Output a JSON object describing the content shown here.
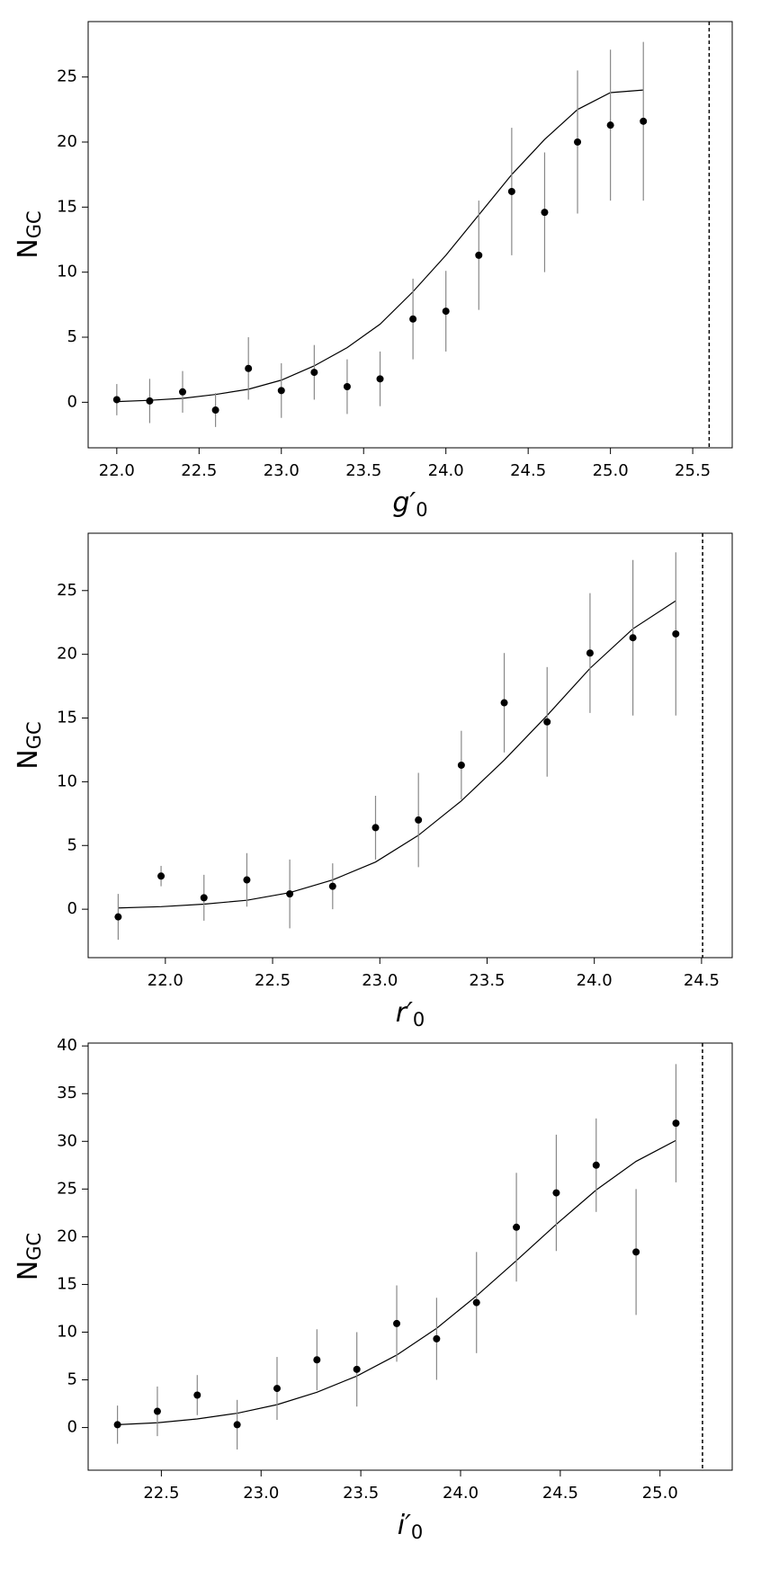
{
  "chart_data": [
    {
      "type": "scatter",
      "x_label_main": "g′",
      "x_label_sub": "0",
      "y_label_main": "N",
      "y_label_sub": "GC",
      "x": [
        22.0,
        22.2,
        22.4,
        22.6,
        22.8,
        23.0,
        23.2,
        23.4,
        23.6,
        23.8,
        24.0,
        24.2,
        24.4,
        24.6,
        24.8,
        25.0,
        25.2
      ],
      "values": [
        0.2,
        0.1,
        0.8,
        -0.6,
        2.6,
        0.9,
        2.3,
        1.2,
        1.8,
        6.4,
        7.0,
        11.3,
        16.2,
        14.6,
        20.0,
        21.3,
        21.6
      ],
      "errors": [
        1.2,
        1.7,
        1.6,
        1.3,
        2.4,
        2.1,
        2.1,
        2.1,
        2.1,
        3.1,
        3.1,
        4.2,
        4.9,
        4.6,
        5.5,
        5.8,
        6.1
      ],
      "model_values": [
        0.05,
        0.15,
        0.3,
        0.6,
        1.0,
        1.7,
        2.8,
        4.2,
        6.0,
        8.5,
        11.3,
        14.4,
        17.5,
        20.2,
        22.5,
        23.8,
        24.0
      ],
      "limit": 25.6,
      "color": "#000000",
      "error_color": "#888888",
      "xlim": [
        21.826,
        25.74
      ],
      "ylim": [
        -3.5,
        29.26
      ],
      "xticks": [
        {
          "value": 22.0,
          "label": "22.0"
        },
        {
          "value": 22.5,
          "label": "22.5"
        },
        {
          "value": 23.0,
          "label": "23.0"
        },
        {
          "value": 23.5,
          "label": "23.5"
        },
        {
          "value": 24.0,
          "label": "24.0"
        },
        {
          "value": 24.5,
          "label": "24.5"
        },
        {
          "value": 25.0,
          "label": "25.0"
        },
        {
          "value": 25.5,
          "label": "25.5"
        }
      ],
      "yticks": [
        0,
        5,
        10,
        15,
        20,
        25
      ]
    },
    {
      "type": "scatter",
      "x_label_main": "r′",
      "x_label_sub": "0",
      "y_label_main": "N",
      "y_label_sub": "GC",
      "x": [
        21.78,
        21.98,
        22.18,
        22.38,
        22.58,
        22.78,
        22.98,
        23.18,
        23.38,
        23.58,
        23.78,
        23.98,
        24.18,
        24.38
      ],
      "values": [
        -0.6,
        2.6,
        0.9,
        2.3,
        1.2,
        1.8,
        6.4,
        7.0,
        11.3,
        16.2,
        14.7,
        20.1,
        21.3,
        21.6
      ],
      "errors": [
        1.8,
        0.8,
        1.8,
        2.1,
        2.7,
        1.8,
        2.5,
        3.7,
        2.7,
        3.9,
        4.3,
        4.7,
        6.1,
        6.4
      ],
      "model_values": [
        0.1,
        0.2,
        0.4,
        0.7,
        1.3,
        2.3,
        3.7,
        5.8,
        8.5,
        11.7,
        15.2,
        18.9,
        22.0,
        24.2
      ],
      "limit": 24.505,
      "color": "#000000",
      "error_color": "#888888",
      "xlim": [
        21.64,
        24.643
      ],
      "ylim": [
        -3.8,
        29.5
      ],
      "xticks": [
        {
          "value": 22.0,
          "label": "22.0"
        },
        {
          "value": 22.5,
          "label": "22.5"
        },
        {
          "value": 23.0,
          "label": "23.0"
        },
        {
          "value": 23.5,
          "label": "23.5"
        },
        {
          "value": 24.0,
          "label": "24.0"
        },
        {
          "value": 24.5,
          "label": "24.5"
        }
      ],
      "yticks": [
        0,
        5,
        10,
        15,
        20,
        25
      ]
    },
    {
      "type": "scatter",
      "x_label_main": "i′",
      "x_label_sub": "0",
      "y_label_main": "N",
      "y_label_sub": "GC",
      "x": [
        22.28,
        22.48,
        22.68,
        22.88,
        23.08,
        23.28,
        23.48,
        23.68,
        23.88,
        24.08,
        24.28,
        24.48,
        24.68,
        24.88,
        25.08
      ],
      "values": [
        0.3,
        1.7,
        3.4,
        0.3,
        4.1,
        7.1,
        6.1,
        10.9,
        9.3,
        13.1,
        21.0,
        24.6,
        27.5,
        18.4,
        31.9
      ],
      "errors": [
        2.0,
        2.6,
        2.1,
        2.6,
        3.3,
        3.2,
        3.9,
        4.0,
        4.3,
        5.3,
        5.7,
        6.1,
        4.9,
        6.6,
        6.2
      ],
      "model_values": [
        0.3,
        0.5,
        0.9,
        1.5,
        2.4,
        3.7,
        5.4,
        7.6,
        10.4,
        13.8,
        17.5,
        21.3,
        24.9,
        27.9,
        30.1
      ],
      "limit": 25.213,
      "color": "#000000",
      "error_color": "#888888",
      "xlim": [
        22.133,
        25.362
      ],
      "ylim": [
        -4.47,
        40.3
      ],
      "xticks": [
        {
          "value": 22.5,
          "label": "22.5"
        },
        {
          "value": 23.0,
          "label": "23.0"
        },
        {
          "value": 23.5,
          "label": "23.5"
        },
        {
          "value": 24.0,
          "label": "24.0"
        },
        {
          "value": 24.5,
          "label": "24.5"
        },
        {
          "value": 25.0,
          "label": "25.0"
        }
      ],
      "yticks": [
        0,
        5,
        10,
        15,
        20,
        25,
        30,
        35,
        40
      ]
    }
  ]
}
